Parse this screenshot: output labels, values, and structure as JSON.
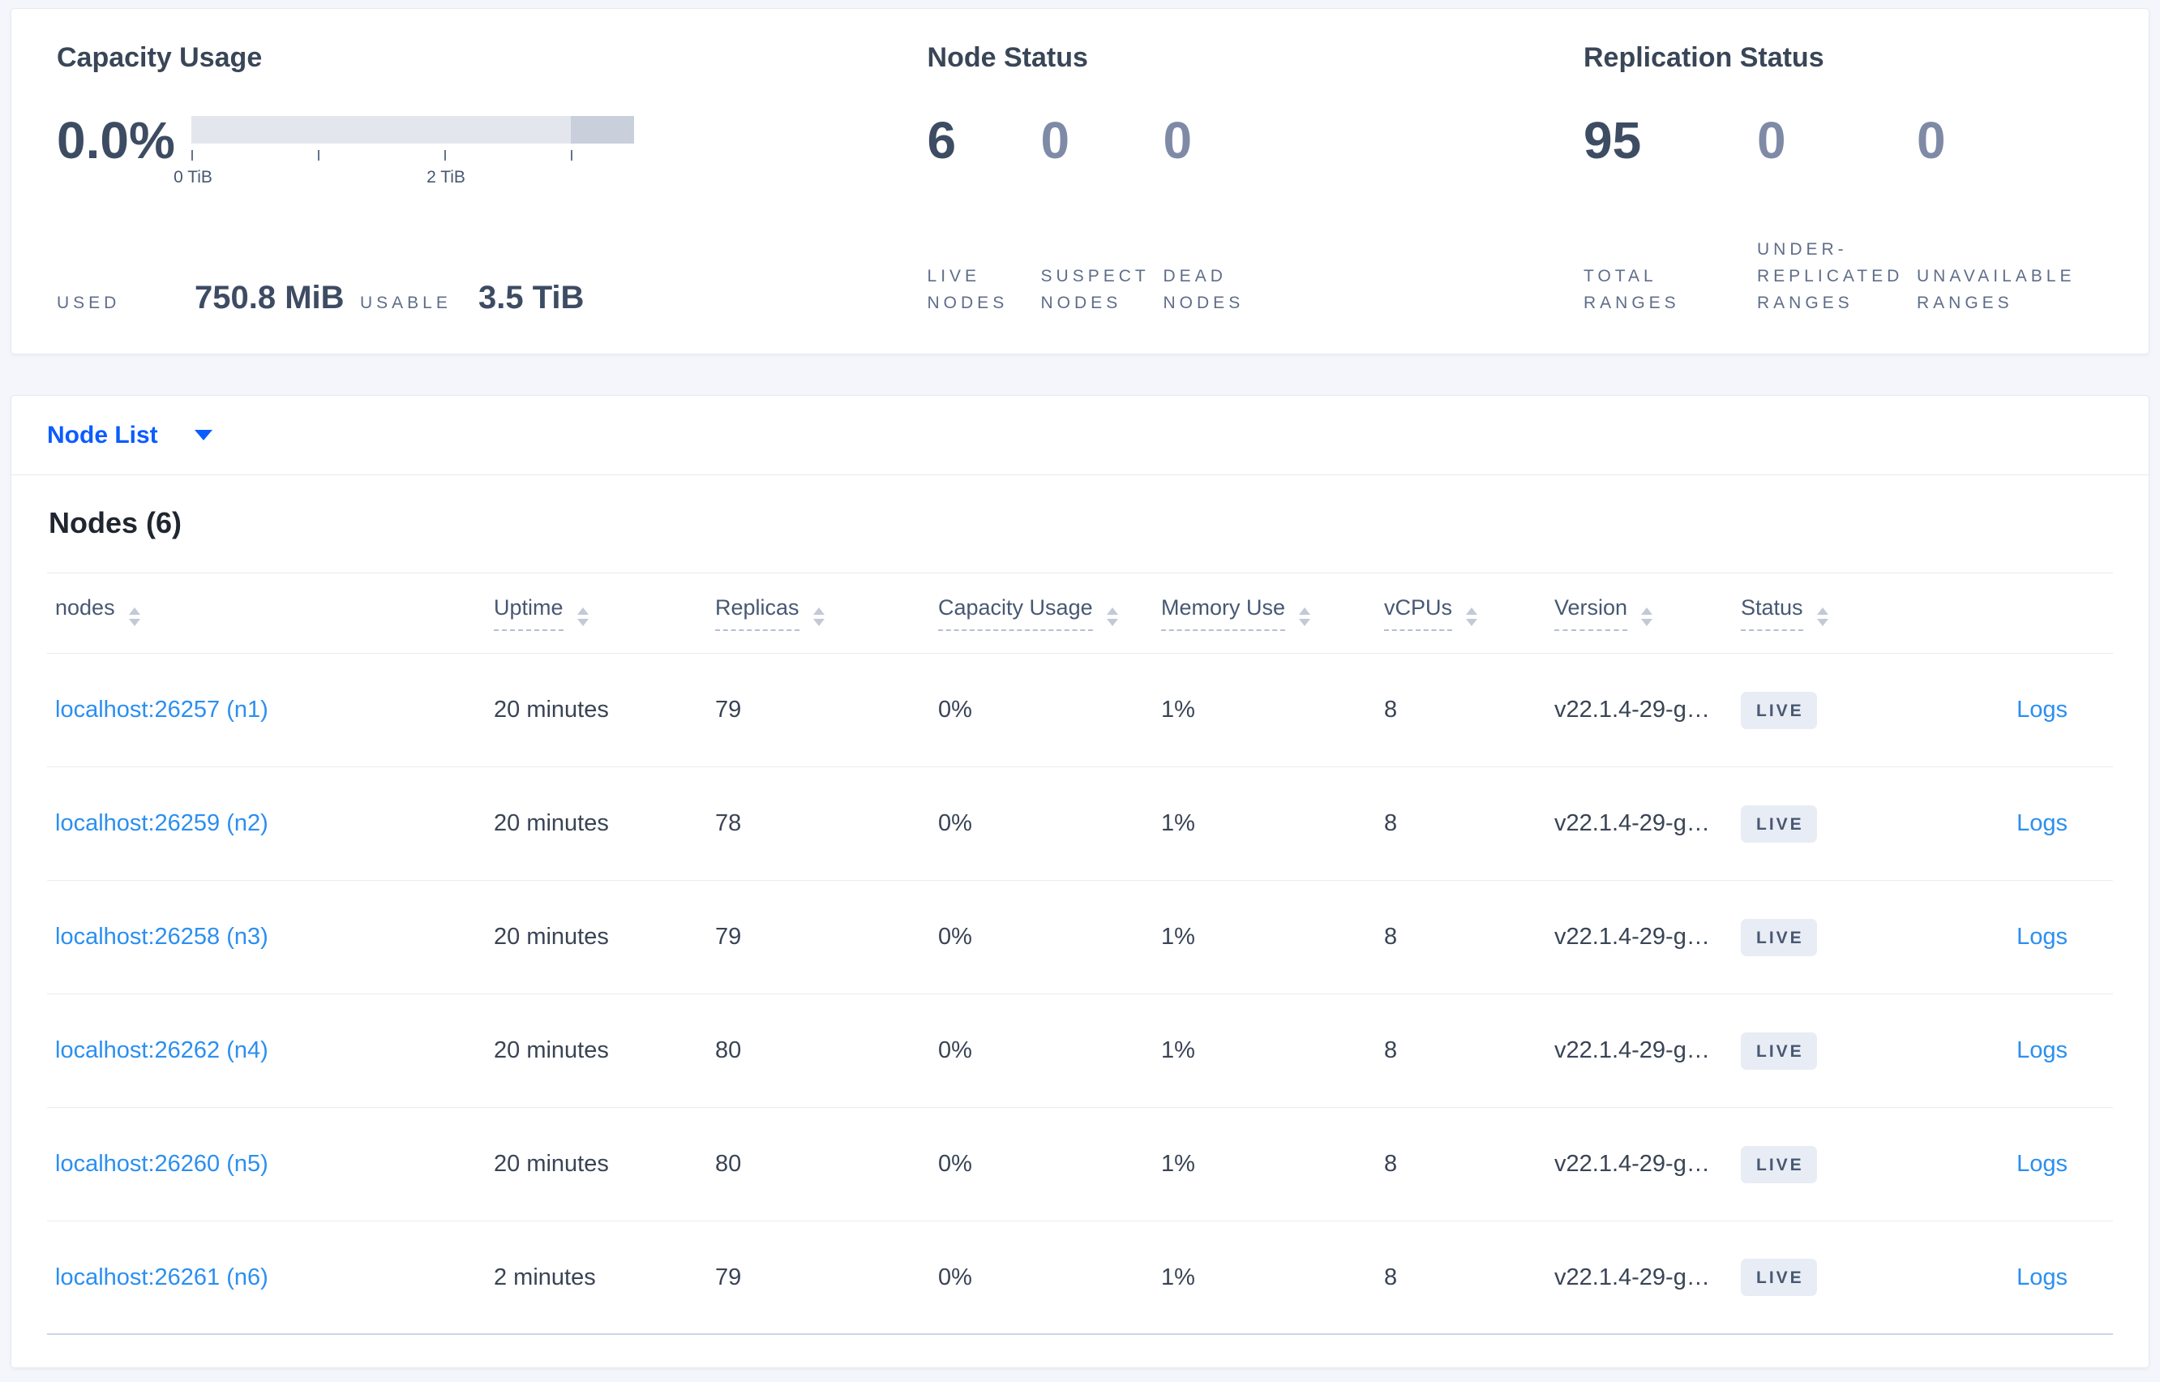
{
  "summary": {
    "capacity": {
      "title": "Capacity Usage",
      "percent": "0.0%",
      "tick_labels": [
        "0 TiB",
        "2 TiB"
      ],
      "axis": {
        "tick_values_tib": [
          0,
          1,
          2,
          3
        ],
        "bar_max_tib": 3.5
      },
      "used_label": "USED",
      "used_value": "750.8 MiB",
      "usable_label": "USABLE",
      "usable_value": "3.5 TiB"
    },
    "node_status": {
      "title": "Node Status",
      "stats": [
        {
          "value": "6",
          "label": "LIVE NODES",
          "emphasis": "high"
        },
        {
          "value": "0",
          "label": "SUSPECT NODES",
          "emphasis": "low"
        },
        {
          "value": "0",
          "label": "DEAD NODES",
          "emphasis": "low"
        }
      ]
    },
    "replication_status": {
      "title": "Replication Status",
      "stats": [
        {
          "value": "95",
          "label": "TOTAL RANGES",
          "emphasis": "high"
        },
        {
          "value": "0",
          "label": "UNDER-REPLICATED RANGES",
          "emphasis": "low"
        },
        {
          "value": "0",
          "label": "UNAVAILABLE RANGES",
          "emphasis": "low"
        }
      ]
    }
  },
  "node_list": {
    "selector_label": "Node List",
    "heading": "Nodes (6)",
    "columns": [
      {
        "label": "nodes",
        "underlined": false
      },
      {
        "label": "Uptime",
        "underlined": true
      },
      {
        "label": "Replicas",
        "underlined": true
      },
      {
        "label": "Capacity Usage",
        "underlined": true
      },
      {
        "label": "Memory Use",
        "underlined": true
      },
      {
        "label": "vCPUs",
        "underlined": true
      },
      {
        "label": "Version",
        "underlined": true
      },
      {
        "label": "Status",
        "underlined": true
      }
    ],
    "rows": [
      {
        "node": "localhost:26257 (n1)",
        "uptime": "20 minutes",
        "replicas": "79",
        "capacity_usage": "0%",
        "memory_use": "1%",
        "vcpus": "8",
        "version": "v22.1.4-29-g…",
        "status": "LIVE",
        "logs": "Logs"
      },
      {
        "node": "localhost:26259 (n2)",
        "uptime": "20 minutes",
        "replicas": "78",
        "capacity_usage": "0%",
        "memory_use": "1%",
        "vcpus": "8",
        "version": "v22.1.4-29-g…",
        "status": "LIVE",
        "logs": "Logs"
      },
      {
        "node": "localhost:26258 (n3)",
        "uptime": "20 minutes",
        "replicas": "79",
        "capacity_usage": "0%",
        "memory_use": "1%",
        "vcpus": "8",
        "version": "v22.1.4-29-g…",
        "status": "LIVE",
        "logs": "Logs"
      },
      {
        "node": "localhost:26262 (n4)",
        "uptime": "20 minutes",
        "replicas": "80",
        "capacity_usage": "0%",
        "memory_use": "1%",
        "vcpus": "8",
        "version": "v22.1.4-29-g…",
        "status": "LIVE",
        "logs": "Logs"
      },
      {
        "node": "localhost:26260 (n5)",
        "uptime": "20 minutes",
        "replicas": "80",
        "capacity_usage": "0%",
        "memory_use": "1%",
        "vcpus": "8",
        "version": "v22.1.4-29-g…",
        "status": "LIVE",
        "logs": "Logs"
      },
      {
        "node": "localhost:26261 (n6)",
        "uptime": "2 minutes",
        "replicas": "79",
        "capacity_usage": "0%",
        "memory_use": "1%",
        "vcpus": "8",
        "version": "v22.1.4-29-g…",
        "status": "LIVE",
        "logs": "Logs"
      }
    ]
  },
  "colors": {
    "accent_blue": "#0b5cff",
    "link_blue": "#2b8ff0",
    "heading_slate": "#394657",
    "number_slate": "#3d4c63",
    "muted_zero": "#7e8aa6",
    "muted_label": "#5f6d89",
    "badge_bg": "#e8ecf4",
    "badge_text": "#475872",
    "bar_track": "#e3e6ed",
    "bar_segment": "#c9cfdb",
    "page_bg": "#f4f6fb"
  }
}
